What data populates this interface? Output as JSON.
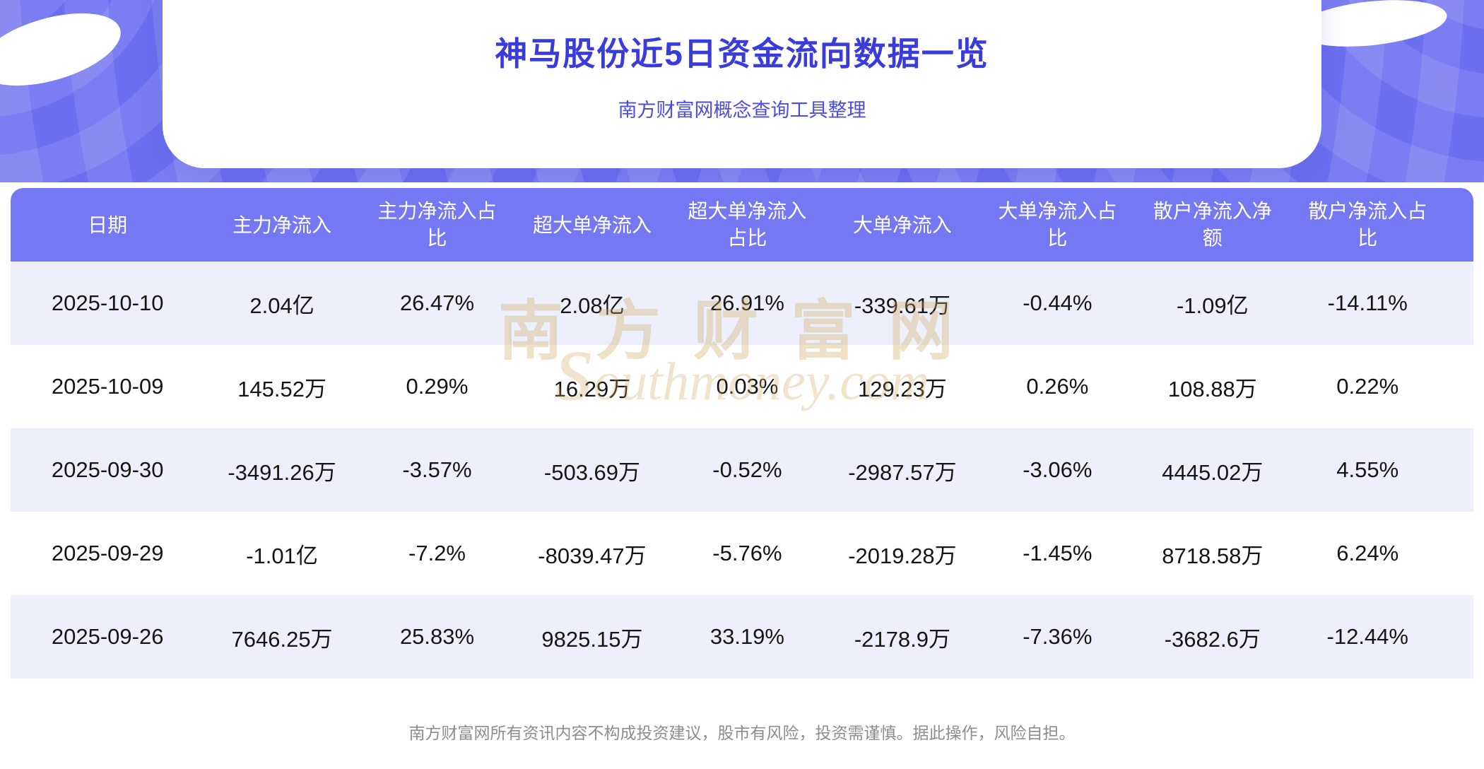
{
  "header": {
    "title": "神马股份近5日资金流向数据一览",
    "subtitle": "南方财富网概念查询工具整理"
  },
  "watermark": {
    "cn": "南方财富网",
    "en": "southmoney.com"
  },
  "chart_data": {
    "type": "table",
    "title": "神马股份近5日资金流向数据一览",
    "columns": [
      "日期",
      "主力净流入",
      "主力净流入占比",
      "超大单净流入",
      "超大单净流入占比",
      "大单净流入",
      "大单净流入占比",
      "散户净流入净额",
      "散户净流入占比"
    ],
    "rows": [
      [
        "2025-10-10",
        "2.04亿",
        "26.47%",
        "2.08亿",
        "26.91%",
        "-339.61万",
        "-0.44%",
        "-1.09亿",
        "-14.11%"
      ],
      [
        "2025-10-09",
        "145.52万",
        "0.29%",
        "16.29万",
        "0.03%",
        "129.23万",
        "0.26%",
        "108.88万",
        "0.22%"
      ],
      [
        "2025-09-30",
        "-3491.26万",
        "-3.57%",
        "-503.69万",
        "-0.52%",
        "-2987.57万",
        "-3.06%",
        "4445.02万",
        "4.55%"
      ],
      [
        "2025-09-29",
        "-1.01亿",
        "-7.2%",
        "-8039.47万",
        "-5.76%",
        "-2019.28万",
        "-1.45%",
        "8718.58万",
        "6.24%"
      ],
      [
        "2025-09-26",
        "7646.25万",
        "25.83%",
        "9825.15万",
        "33.19%",
        "-2178.9万",
        "-7.36%",
        "-3682.6万",
        "-12.44%"
      ]
    ]
  },
  "footer": {
    "disclaimer": "南方财富网所有资讯内容不构成投资建议，股市有风险，投资需谨慎。据此操作，风险自担。"
  },
  "colors": {
    "banner": "#6b6ff0",
    "title_text": "#393cdb",
    "table_header_bg": "#7478f2",
    "row_alt_bg": "#edf0fc",
    "watermark": "#d0a65e",
    "footer_text": "#8d8d8d"
  }
}
